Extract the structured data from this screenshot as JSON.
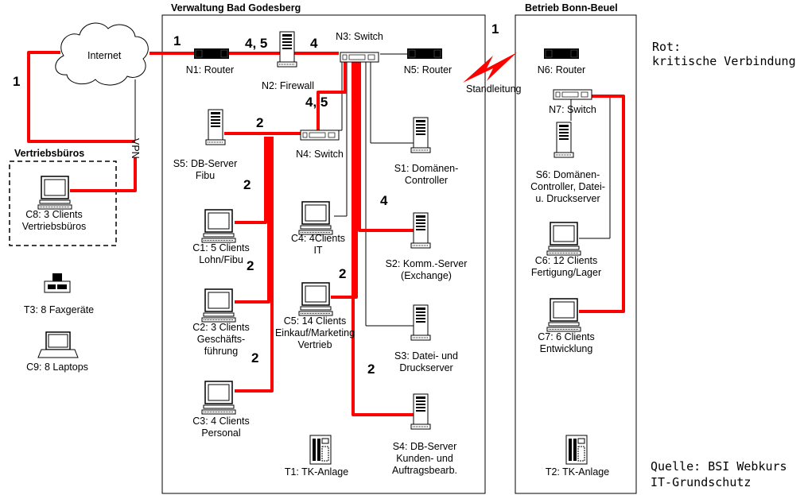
{
  "areas": {
    "main_title": "Verwaltung Bad Godesberg",
    "branch_title": "Betrieb Bonn-Beuel",
    "sales_title": "Vertriebsbüros"
  },
  "cloud": {
    "label": "Internet"
  },
  "vpn_label": "VPN",
  "standleitung_label": "Standleitung",
  "legend": {
    "line1": "Rot:",
    "line2": "kritische Verbindung"
  },
  "source": {
    "line1": "Quelle: BSI Webkurs",
    "line2": "IT-Grundschutz"
  },
  "nodes": {
    "N1": {
      "lines": [
        "N1: Router"
      ]
    },
    "N2": {
      "lines": [
        "N2: Firewall"
      ]
    },
    "N3": {
      "lines": [
        "N3: Switch"
      ]
    },
    "N4": {
      "lines": [
        "N4: Switch"
      ]
    },
    "N5": {
      "lines": [
        "N5: Router"
      ]
    },
    "N6": {
      "lines": [
        "N6: Router"
      ]
    },
    "N7": {
      "lines": [
        "N7: Switch"
      ]
    },
    "S1": {
      "lines": [
        "S1: Domänen-",
        "Controller"
      ]
    },
    "S2": {
      "lines": [
        "S2: Komm.-Server",
        "(Exchange)"
      ]
    },
    "S3": {
      "lines": [
        "S3: Datei- und",
        "Druckserver"
      ]
    },
    "S4": {
      "lines": [
        "S4: DB-Server",
        "Kunden- und",
        "Auftragsbearb."
      ]
    },
    "S5": {
      "lines": [
        "S5: DB-Server",
        "Fibu"
      ]
    },
    "S6": {
      "lines": [
        "S6: Domänen-",
        "Controller, Datei-",
        "u. Druckserver"
      ]
    },
    "C1": {
      "lines": [
        "C1: 5 Clients",
        "Lohn/Fibu"
      ]
    },
    "C2": {
      "lines": [
        "C2: 3 Clients",
        "Geschäfts-",
        "führung"
      ]
    },
    "C3": {
      "lines": [
        "C3: 4 Clients",
        "Personal"
      ]
    },
    "C4": {
      "lines": [
        "C4: 4Clients",
        "IT"
      ]
    },
    "C5": {
      "lines": [
        "C5: 14 Clients",
        "Einkauf/Marketing",
        "Vertrieb"
      ]
    },
    "C6": {
      "lines": [
        "C6: 12 Clients",
        "Fertigung/Lager"
      ]
    },
    "C7": {
      "lines": [
        "C7: 6 Clients",
        "Entwicklung"
      ]
    },
    "C8": {
      "lines": [
        "C8: 3 Clients",
        "Vertriebsbüros"
      ]
    },
    "C9": {
      "lines": [
        "C9: 8 Laptops"
      ]
    },
    "T1": {
      "lines": [
        "T1: TK-Anlage"
      ]
    },
    "T2": {
      "lines": [
        "T2: TK-Anlage"
      ]
    },
    "T3": {
      "lines": [
        "T3: 8 Faxgeräte"
      ]
    }
  },
  "link_labels": {
    "internet_n1": "1",
    "internet_vpn": "1",
    "n1_n2": "4, 5",
    "n2_n3": "4",
    "n5_n6": "1",
    "n3_n4": "4, 5",
    "s5_n4": "2",
    "c1_link": "2",
    "c2_link": "2",
    "c3_link": "2",
    "s2_link": "4",
    "c5_link": "2",
    "s4_link": "2"
  },
  "colors": {
    "critical": "#ff0000",
    "normal": "#000000"
  }
}
